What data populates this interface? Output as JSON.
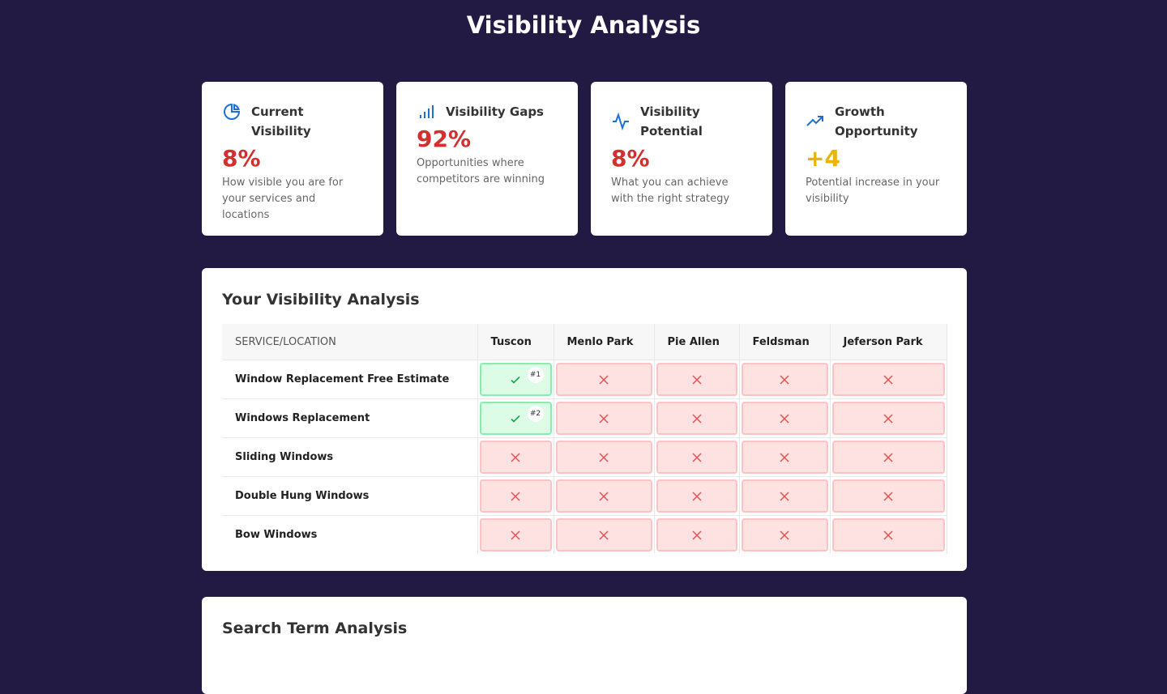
{
  "header": {
    "title": "Visibility Analysis"
  },
  "cards": [
    {
      "title": "Current Visibility",
      "value": "8%",
      "description": "How visible you are for your services and locations",
      "color": "#d32f2f"
    },
    {
      "title": "Visibility Gaps",
      "value": "92%",
      "description": "Opportunities where competitors are winning",
      "color": "#d32f2f"
    },
    {
      "title": "Visibility Potential",
      "value": "8%",
      "description": "What you can achieve with the right strategy",
      "color": "#d32f2f"
    },
    {
      "title": "Growth Opportunity",
      "value": "+4",
      "description": "Potential increase in your visibility",
      "color": "#eab308"
    }
  ],
  "analysis": {
    "title": "Your Visibility Analysis",
    "columns": [
      "SERVICE/LOCATION",
      "Tuscon",
      "Menlo Park",
      "Pie Allen",
      "Feldsman",
      "Jeferson Park"
    ],
    "rows": [
      {
        "service": "Window Replacement Free Estimate",
        "cells": [
          {
            "visible": true,
            "rank": "#1"
          },
          {
            "visible": false
          },
          {
            "visible": false
          },
          {
            "visible": false
          },
          {
            "visible": false
          }
        ]
      },
      {
        "service": "Windows Replacement",
        "cells": [
          {
            "visible": true,
            "rank": "#2"
          },
          {
            "visible": false
          },
          {
            "visible": false
          },
          {
            "visible": false
          },
          {
            "visible": false
          }
        ]
      },
      {
        "service": "Sliding Windows",
        "cells": [
          {
            "visible": false
          },
          {
            "visible": false
          },
          {
            "visible": false
          },
          {
            "visible": false
          },
          {
            "visible": false
          }
        ]
      },
      {
        "service": "Double Hung Windows",
        "cells": [
          {
            "visible": false
          },
          {
            "visible": false
          },
          {
            "visible": false
          },
          {
            "visible": false
          },
          {
            "visible": false
          }
        ]
      },
      {
        "service": "Bow Windows",
        "cells": [
          {
            "visible": false
          },
          {
            "visible": false
          },
          {
            "visible": false
          },
          {
            "visible": false
          },
          {
            "visible": false
          }
        ]
      }
    ]
  },
  "search": {
    "title": "Search Term Analysis"
  }
}
